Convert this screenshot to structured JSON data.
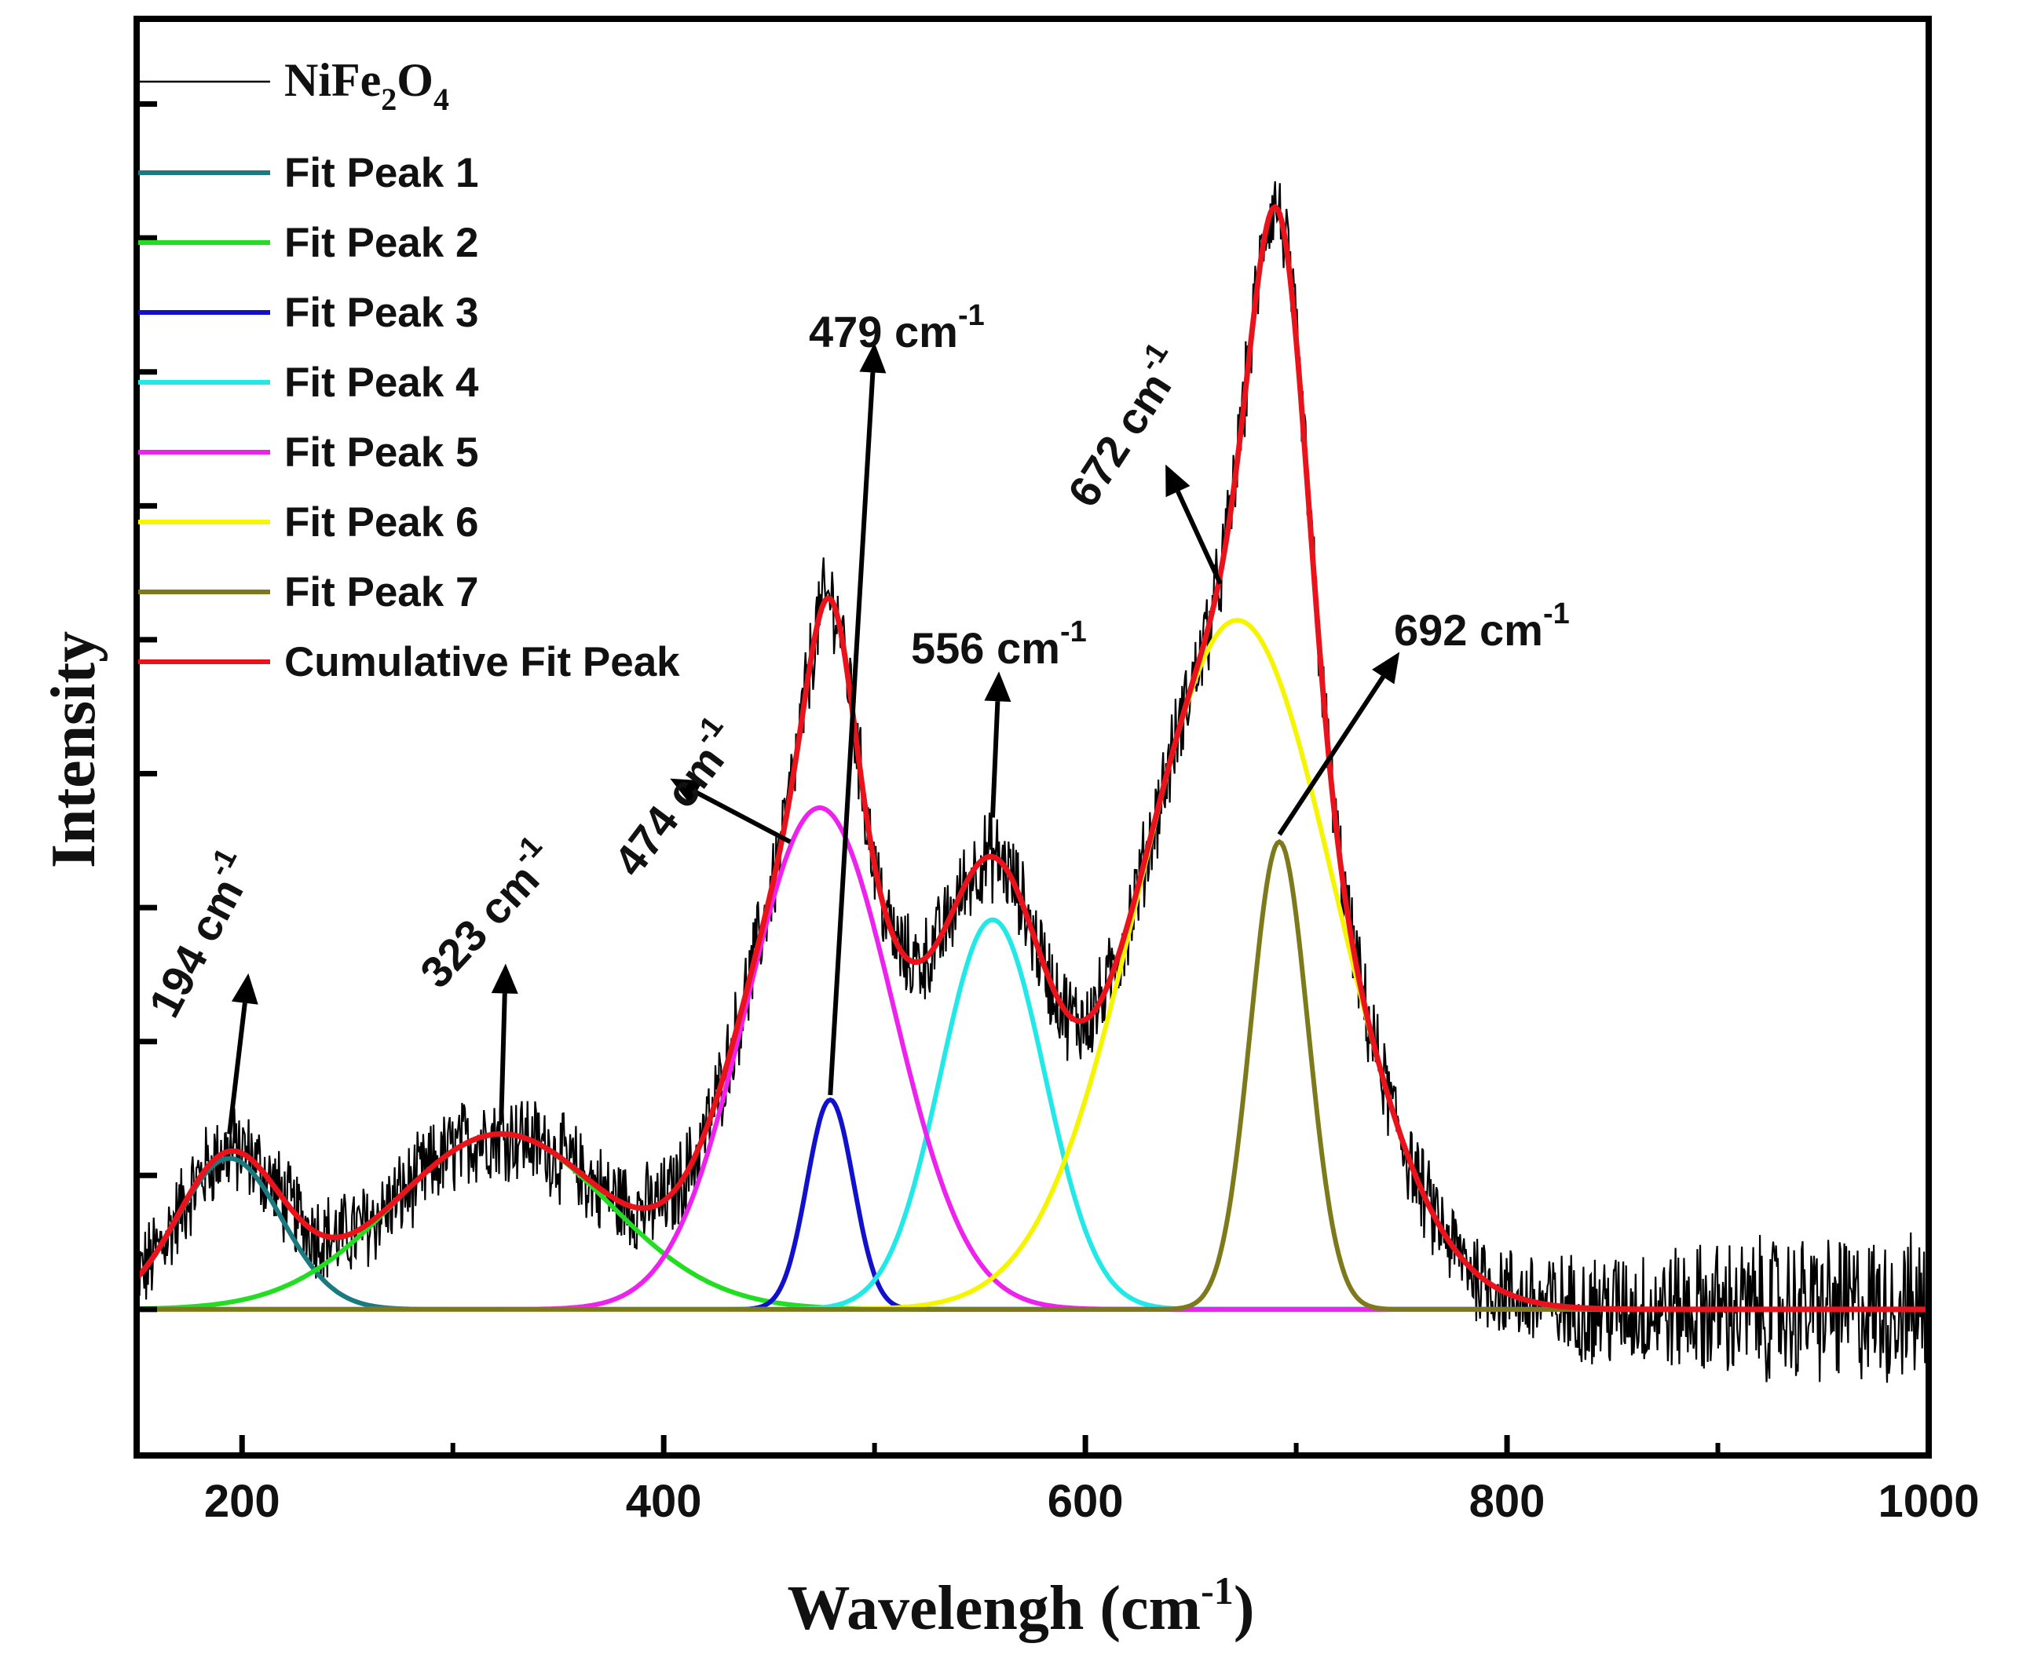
{
  "chart_data": {
    "type": "line",
    "xlabel_main": "Wavelengh (cm",
    "xlabel_sup": "-1",
    "xlabel_close": ")",
    "ylabel": "Intensity",
    "xlim": [
      150,
      1000
    ],
    "ylim": [
      -0.6,
      5.3
    ],
    "x_ticks": [
      200,
      400,
      600,
      800,
      1000
    ],
    "x_tick_labels": [
      "200",
      "400",
      "600",
      "800",
      "1000"
    ],
    "x_minor_ticks": [
      300,
      500,
      700,
      900
    ],
    "y_ticks": [
      0.0,
      0.55,
      1.1,
      1.65,
      2.2,
      2.75,
      3.3,
      3.85,
      4.4,
      4.95
    ],
    "raw_series": {
      "name_main": "NiFe",
      "name_sub1": "2",
      "name_mid": "O",
      "name_sub2": "4",
      "color": "#000000",
      "noise": 0.17,
      "noise_end": 0.28
    },
    "peaks": [
      {
        "name": "Fit Peak 1",
        "color": "#1a7a7f",
        "center": 194,
        "height": 0.62,
        "fwhm": 58
      },
      {
        "name": "Fit Peak 2",
        "color": "#22dd22",
        "center": 323,
        "height": 0.72,
        "fwhm": 120
      },
      {
        "name": "Fit Peak 3",
        "color": "#1111cc",
        "center": 479,
        "height": 0.86,
        "fwhm": 26
      },
      {
        "name": "Fit Peak 4",
        "color": "#22e8e8",
        "center": 556,
        "height": 1.6,
        "fwhm": 58
      },
      {
        "name": "Fit Peak 5",
        "color": "#ee22ee",
        "center": 474,
        "height": 2.06,
        "fwhm": 82
      },
      {
        "name": "Fit Peak 6",
        "color": "#f5f500",
        "center": 672,
        "height": 2.83,
        "fwhm": 110
      },
      {
        "name": "Fit Peak 7",
        "color": "#7d7a1c",
        "center": 692,
        "height": 1.92,
        "fwhm": 32
      }
    ],
    "cumulative": {
      "name": "Cumulative Fit Peak",
      "color": "#e8131b"
    },
    "annotations": [
      {
        "label": "194 cm",
        "sup": "-1",
        "peak_x": 194,
        "tip_x": 203,
        "tip_y": 1.38,
        "tail_y": 0.72
      },
      {
        "label": "323 cm",
        "sup": "-1",
        "peak_x": 323,
        "tip_x": 325,
        "tip_y": 1.42,
        "tail_y": 0.8
      },
      {
        "label": "474 cm",
        "sup": "-1",
        "peak_x": 474,
        "tip_x": 403,
        "tip_y": 2.18,
        "tail_y": 1.92
      },
      {
        "label": "479 cm",
        "sup": "-1",
        "peak_x": 479,
        "tip_x": 500,
        "tip_y": 3.97,
        "tail_y": 0.86
      },
      {
        "label": "556 cm",
        "sup": "-1",
        "peak_x": 556,
        "tip_x": 559,
        "tip_y": 2.62,
        "tail_y": 2.02
      },
      {
        "label": "672 cm",
        "sup": "-1",
        "peak_x": 672,
        "tip_x": 638,
        "tip_y": 3.47,
        "tail_y": 2.98
      },
      {
        "label": "692 cm",
        "sup": "-1",
        "peak_x": 692,
        "tip_x": 749,
        "tip_y": 2.7,
        "tail_y": 1.95
      }
    ]
  }
}
